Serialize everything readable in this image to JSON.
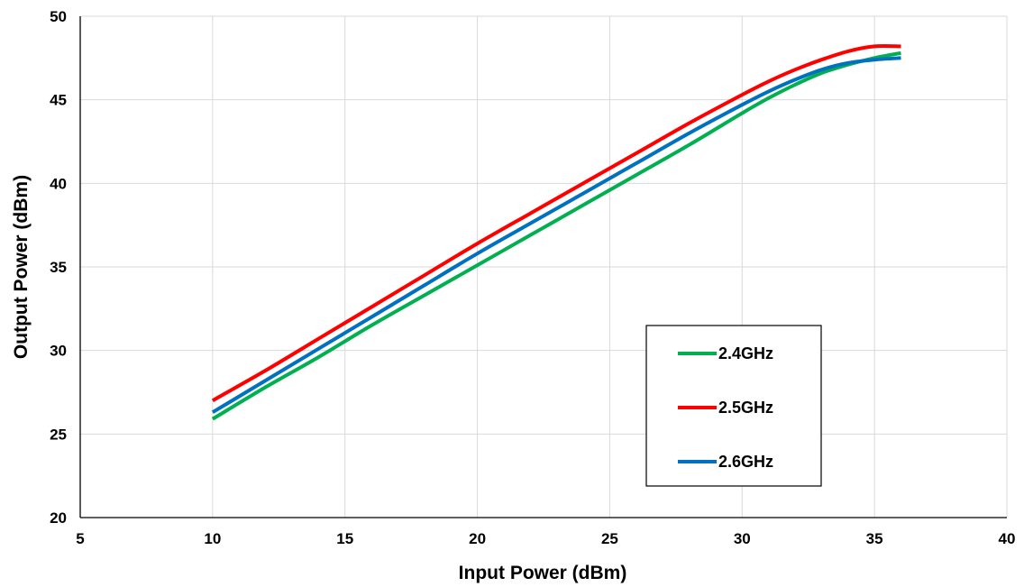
{
  "chart_data": {
    "type": "line",
    "xlabel": "Input Power (dBm)",
    "ylabel": "Output Power (dBm)",
    "xlim": [
      5,
      40
    ],
    "ylim": [
      20,
      50
    ],
    "xticks": [
      5,
      10,
      15,
      20,
      25,
      30,
      35,
      40
    ],
    "yticks": [
      20,
      25,
      30,
      35,
      40,
      45,
      50
    ],
    "grid": true,
    "legend_position": "lower-right",
    "series": [
      {
        "name": "2.4GHz",
        "color": "#00b050",
        "x": [
          10,
          12,
          14,
          16,
          18,
          20,
          22,
          24,
          26,
          28,
          30,
          31,
          32,
          33,
          34,
          35,
          36
        ],
        "y": [
          25.9,
          27.8,
          29.6,
          31.5,
          33.3,
          35.1,
          36.9,
          38.7,
          40.5,
          42.3,
          44.2,
          45.1,
          45.9,
          46.6,
          47.1,
          47.5,
          47.8
        ]
      },
      {
        "name": "2.5GHz",
        "color": "#ff0000",
        "x": [
          10,
          12,
          14,
          16,
          18,
          20,
          22,
          24,
          26,
          28,
          30,
          31,
          32,
          33,
          34,
          35,
          36
        ],
        "y": [
          27.0,
          28.8,
          30.7,
          32.6,
          34.5,
          36.4,
          38.2,
          40.0,
          41.8,
          43.6,
          45.3,
          46.1,
          46.8,
          47.4,
          47.9,
          48.2,
          48.2
        ]
      },
      {
        "name": "2.6GHz",
        "color": "#0070c0",
        "x": [
          10,
          12,
          14,
          16,
          18,
          20,
          22,
          24,
          26,
          28,
          30,
          31,
          32,
          33,
          34,
          35,
          36
        ],
        "y": [
          26.3,
          28.2,
          30.1,
          32.0,
          33.9,
          35.8,
          37.6,
          39.4,
          41.2,
          43.0,
          44.7,
          45.5,
          46.2,
          46.8,
          47.2,
          47.4,
          47.5
        ]
      }
    ]
  }
}
